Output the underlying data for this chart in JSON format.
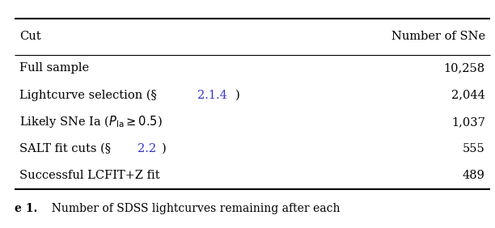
{
  "col_headers": [
    "Cut",
    "Number of SNe"
  ],
  "rows": [
    [
      "Full sample",
      "10,258"
    ],
    [
      "Lightcurve selection (§2.1.4)",
      "2,044"
    ],
    [
      "Likely SNe Ia ($P_{\\mathrm{Ia}} \\geq 0.5$)",
      "1,037"
    ],
    [
      "SALT fit cuts (§2.2)",
      "555"
    ],
    [
      "Successful LCFIT+Z fit",
      "489"
    ]
  ],
  "caption": "e 1.  Number of SDSS lightcurves remaining after each",
  "bg_color": "#ffffff",
  "text_color": "#000000",
  "blue_color": "#3333cc",
  "figsize": [
    6.12,
    2.82
  ],
  "dpi": 100,
  "font_size": 10.5,
  "caption_font_size": 10.0
}
